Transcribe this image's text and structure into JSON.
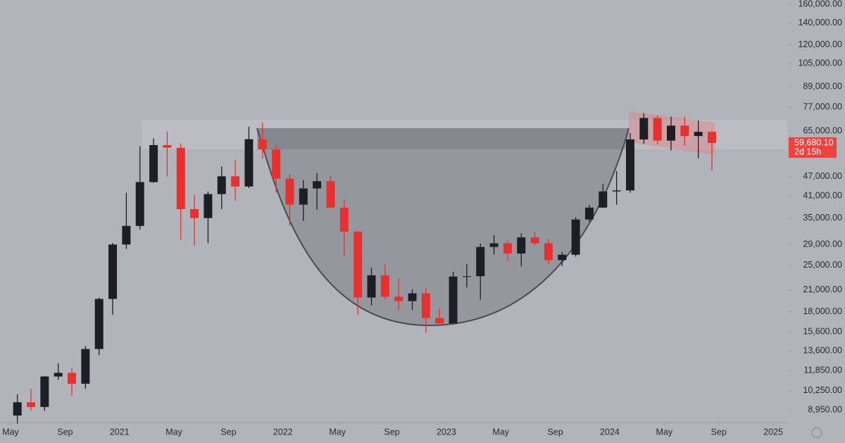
{
  "chart_data": {
    "type": "candlestick",
    "log_scale": true,
    "up_color": "#1e1f24",
    "down_color": "#e8312f",
    "x": [
      "2020-05",
      "2020-06",
      "2020-07",
      "2020-08",
      "2020-09",
      "2020-10",
      "2020-11",
      "2020-12",
      "2021-01",
      "2021-02",
      "2021-03",
      "2021-04",
      "2021-05",
      "2021-06",
      "2021-07",
      "2021-08",
      "2021-09",
      "2021-10",
      "2021-11",
      "2021-12",
      "2022-01",
      "2022-02",
      "2022-03",
      "2022-04",
      "2022-05",
      "2022-06",
      "2022-07",
      "2022-08",
      "2022-09",
      "2022-10",
      "2022-11",
      "2022-12",
      "2023-01",
      "2023-02",
      "2023-03",
      "2023-04",
      "2023-05",
      "2023-06",
      "2023-07",
      "2023-08",
      "2023-09",
      "2023-10",
      "2023-11",
      "2023-12",
      "2024-01",
      "2024-02",
      "2024-03",
      "2024-04",
      "2024-05",
      "2024-06",
      "2024-07",
      "2024-08"
    ],
    "open": [
      8600,
      9450,
      9140,
      11350,
      11650,
      10780,
      13800,
      19700,
      29000,
      33100,
      45200,
      58800,
      57700,
      37300,
      35000,
      41500,
      47100,
      43800,
      61300,
      57000,
      46300,
      38500,
      43200,
      45500,
      37700,
      31800,
      19900,
      23300,
      20000,
      19400,
      20500,
      17200,
      16550,
      23100,
      23150,
      28500,
      29250,
      27200,
      30500,
      29250,
      25950,
      26970,
      34650,
      37700,
      42300,
      42600,
      61200,
      71300,
      60700,
      67500,
      62700,
      64600
    ],
    "high": [
      10000,
      10400,
      11400,
      12470,
      12050,
      14100,
      19900,
      29300,
      41900,
      58300,
      61700,
      64800,
      59500,
      41300,
      42300,
      50500,
      52900,
      67000,
      69000,
      59000,
      47900,
      45800,
      48200,
      47400,
      40000,
      31900,
      24600,
      25200,
      22800,
      21100,
      21400,
      18400,
      23900,
      25200,
      29200,
      31000,
      29800,
      31400,
      31800,
      30200,
      27500,
      35200,
      38400,
      44700,
      48900,
      64000,
      73800,
      72700,
      71900,
      71900,
      70000,
      65000
    ],
    "low": [
      8100,
      8900,
      8900,
      11100,
      9900,
      10400,
      13200,
      17600,
      28100,
      32300,
      45000,
      47000,
      30000,
      28800,
      29300,
      37300,
      39600,
      43300,
      53300,
      42000,
      33000,
      34300,
      37200,
      37600,
      26700,
      17600,
      18800,
      19600,
      18200,
      18200,
      15500,
      16300,
      16500,
      21400,
      19600,
      27000,
      25800,
      24800,
      28900,
      25200,
      24900,
      26600,
      34100,
      37600,
      38500,
      41900,
      59300,
      59200,
      56600,
      58500,
      53500,
      49000
    ],
    "close": [
      9450,
      9140,
      11350,
      11650,
      10780,
      13800,
      19700,
      29000,
      33100,
      45200,
      58800,
      57700,
      37300,
      35000,
      41500,
      47100,
      43800,
      61300,
      57000,
      46300,
      38500,
      43200,
      45500,
      37700,
      31800,
      19900,
      23300,
      20000,
      19400,
      20500,
      17200,
      16550,
      23100,
      23150,
      28500,
      29250,
      27200,
      30500,
      29250,
      25950,
      26970,
      34650,
      37700,
      42300,
      42600,
      61200,
      71300,
      60700,
      67500,
      62700,
      64600,
      59680.1
    ],
    "last_close_label": "59,680.10",
    "countdown": "2d 15h",
    "ylim": [
      8180,
      164900
    ],
    "yticks": [
      {
        "value": 160000,
        "label": "160,000.00"
      },
      {
        "value": 140000,
        "label": "140,000.00"
      },
      {
        "value": 120000,
        "label": "120,000.00"
      },
      {
        "value": 105000,
        "label": "105,000.00"
      },
      {
        "value": 89000,
        "label": "89,000.00"
      },
      {
        "value": 77000,
        "label": "77,000.00"
      },
      {
        "value": 65000,
        "label": "65,000.00"
      },
      {
        "value": 47000,
        "label": "47,000.00"
      },
      {
        "value": 41000,
        "label": "41,000.00"
      },
      {
        "value": 35000,
        "label": "35,000.00"
      },
      {
        "value": 29000,
        "label": "29,000.00"
      },
      {
        "value": 25000,
        "label": "25,000.00"
      },
      {
        "value": 21000,
        "label": "21,000.00"
      },
      {
        "value": 18000,
        "label": "18,000.00"
      },
      {
        "value": 15600,
        "label": "15,600.00"
      },
      {
        "value": 13600,
        "label": "13,600.00"
      },
      {
        "value": 11850,
        "label": "11,850.00"
      },
      {
        "value": 10250,
        "label": "10,250.00"
      },
      {
        "value": 8950,
        "label": "8,950.00"
      }
    ],
    "xticks": [
      {
        "value": "2020-05",
        "label": "May"
      },
      {
        "value": "2020-09",
        "label": "Sep"
      },
      {
        "value": "2021-01",
        "label": "2021"
      },
      {
        "value": "2021-05",
        "label": "May"
      },
      {
        "value": "2021-09",
        "label": "Sep"
      },
      {
        "value": "2022-01",
        "label": "2022"
      },
      {
        "value": "2022-05",
        "label": "May"
      },
      {
        "value": "2022-09",
        "label": "Sep"
      },
      {
        "value": "2023-01",
        "label": "2023"
      },
      {
        "value": "2023-05",
        "label": "May"
      },
      {
        "value": "2023-09",
        "label": "Sep"
      },
      {
        "value": "2024-01",
        "label": "2024"
      },
      {
        "value": "2024-05",
        "label": "May"
      },
      {
        "value": "2024-09",
        "label": "Sep"
      },
      {
        "value": "2025-01",
        "label": "2025"
      }
    ]
  }
}
